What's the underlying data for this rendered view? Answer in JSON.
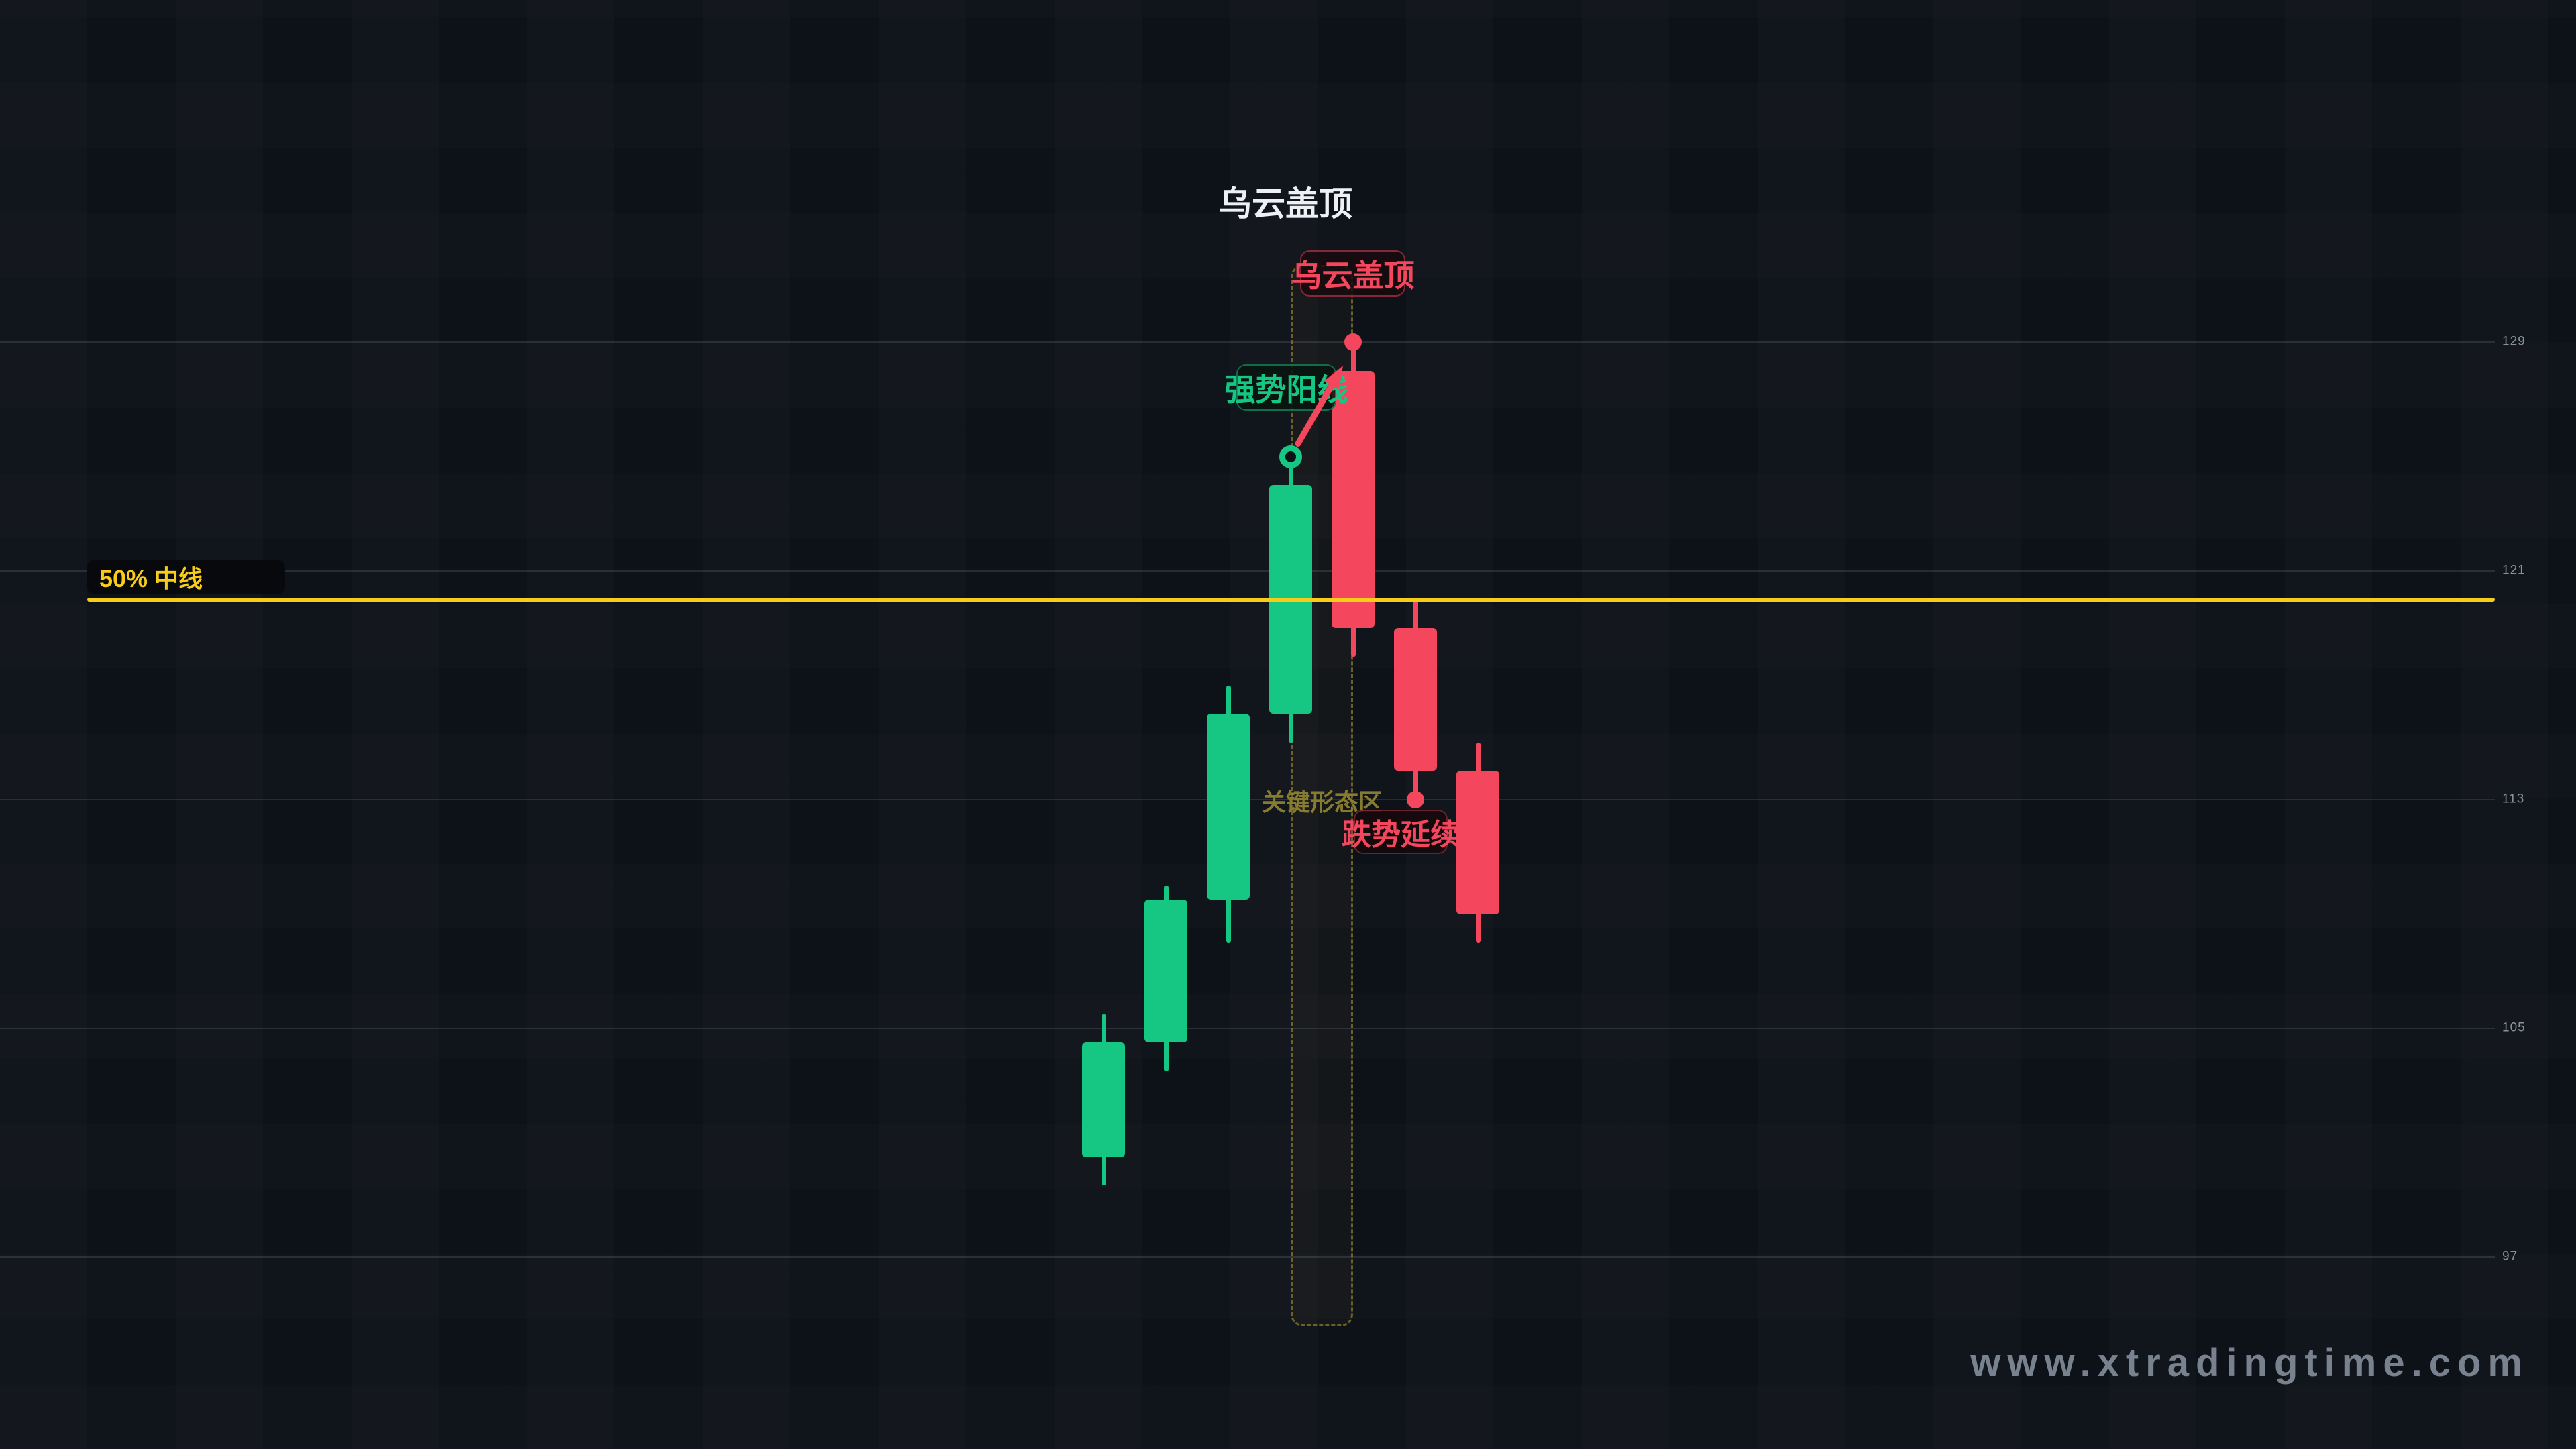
{
  "title": "乌云盖顶",
  "watermark": "www.xtradingtime.com",
  "colors": {
    "background": "#0d1118",
    "bullish": "#16c784",
    "bearish": "#f4465d",
    "midline": "#f7cd1a",
    "zone": "#8a7a2a",
    "grid": "#39414f",
    "axis_text": "#8a919d",
    "title_text": "#eef0f4",
    "watermark_text": "#97a1b0"
  },
  "chart_data": {
    "type": "candlestick",
    "title": "乌云盖顶",
    "y_axis": {
      "side": "right",
      "ticks": [
        129,
        121,
        113,
        105,
        97
      ]
    },
    "ylim": [
      94.5,
      131.5
    ],
    "grid": true,
    "candles": [
      {
        "open": 100.5,
        "high": 105.5,
        "low": 99.5,
        "close": 104.5,
        "direction": "bullish"
      },
      {
        "open": 104.5,
        "high": 110,
        "low": 103.5,
        "close": 109.5,
        "direction": "bullish"
      },
      {
        "open": 109.5,
        "high": 117,
        "low": 108,
        "close": 116,
        "direction": "bullish"
      },
      {
        "open": 116,
        "high": 125,
        "low": 115,
        "close": 124,
        "direction": "bullish"
      },
      {
        "open": 128,
        "high": 129,
        "low": 118,
        "close": 119,
        "direction": "bearish"
      },
      {
        "open": 119,
        "high": 120,
        "low": 113,
        "close": 114,
        "direction": "bearish"
      },
      {
        "open": 114,
        "high": 115,
        "low": 108,
        "close": 109,
        "direction": "bearish"
      }
    ],
    "midline": {
      "price": 120,
      "label": "50% 中线"
    },
    "zone": {
      "label": "关键形态区",
      "from_candle": 3,
      "to_candle": 4
    },
    "markers": [
      {
        "style": "ring",
        "candle": 3,
        "price": 125,
        "color_role": "bullish"
      },
      {
        "style": "dot",
        "candle": 4,
        "price": 129,
        "color_role": "bearish"
      },
      {
        "style": "dot",
        "candle": 5,
        "price": 113,
        "color_role": "bearish"
      }
    ],
    "arrow": {
      "from": {
        "candle": 3,
        "price": 125
      },
      "to": {
        "candle": 4,
        "price": 128.1,
        "dx": -18,
        "dy": 2
      },
      "color_role": "bearish"
    },
    "annotations": {
      "pattern_label": "乌云盖顶",
      "strong_candle_label": "强势阳线",
      "continuation_label": "跌势延续"
    }
  }
}
